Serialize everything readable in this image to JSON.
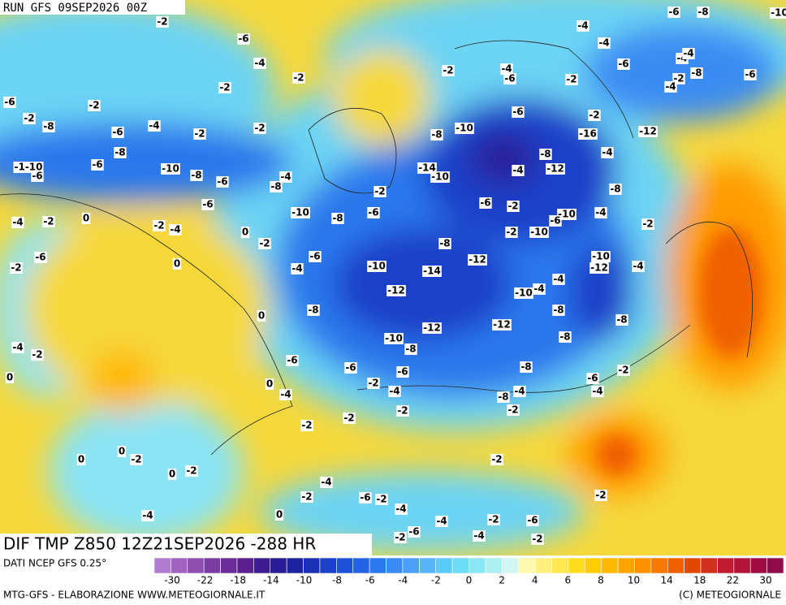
{
  "run": "RUN GFS 09SEP2026 00Z",
  "title": "DIF TMP Z850 12Z21SEP2026 -288 HR",
  "source": "DATI NCEP GFS 0.25°",
  "credit_left": "MTG-GFS - ELABORAZIONE WWW.METEOGIORNALE.IT",
  "credit_right": "(C) METEOGIORNALE",
  "colorbar": {
    "colors": [
      "#b07cd0",
      "#a064c0",
      "#8e50b0",
      "#7a3ca0",
      "#6a2c96",
      "#5a2090",
      "#3c1c90",
      "#2a1c96",
      "#1c22a0",
      "#1a30b4",
      "#1c40c8",
      "#1e50d8",
      "#2464e4",
      "#2c78ec",
      "#3a8cf2",
      "#4aa0f6",
      "#58b4f8",
      "#5ccaf8",
      "#6cdcf6",
      "#8ae8f4",
      "#aef0f2",
      "#d4f6f0",
      "#fff8b0",
      "#fff080",
      "#ffe850",
      "#ffdc20",
      "#ffcc00",
      "#ffb800",
      "#ffa400",
      "#ff9000",
      "#f87800",
      "#f06000",
      "#e04800",
      "#d03020",
      "#c01c30",
      "#b01438",
      "#a00c40",
      "#900c48"
    ],
    "labels": [
      "-30",
      "-22",
      "-18",
      "-14",
      "-10",
      "-8",
      "-6",
      "-4",
      "-2",
      "0",
      "2",
      "4",
      "6",
      "8",
      "10",
      "14",
      "18",
      "22",
      "30"
    ]
  },
  "contour_labels": [
    "-2",
    "-6",
    "-4",
    "-2",
    "-2",
    "-2",
    "-6",
    "-2",
    "-8",
    "-6",
    "-4",
    "-2",
    "-2",
    "-8",
    "-6",
    "-1-10",
    "-6",
    "-10",
    "-8",
    "-6",
    "-4",
    "-8",
    "-6",
    "-10",
    "-8",
    "-6",
    "-2",
    "-4",
    "-2",
    "0",
    "-2",
    "-4",
    "0",
    "-2",
    "-6",
    "-2",
    "-6",
    "-4",
    "0",
    "-10",
    "-8",
    "-14",
    "-12",
    "-12",
    "-8",
    "0",
    "-10",
    "-8",
    "-12",
    "-12",
    "-10",
    "-4",
    "-4",
    "-8",
    "-8",
    "-8",
    "-10",
    "-12",
    "-4",
    "-4",
    "-2",
    "0",
    "-6",
    "-6",
    "-2",
    "-6",
    "-4",
    "0",
    "-4",
    "-8",
    "-8",
    "-4",
    "-2",
    "-6",
    "-2",
    "-4",
    "-2",
    "-2",
    "-2",
    "0",
    "-2",
    "0",
    "0",
    "-2",
    "-2",
    "-4",
    "-2",
    "-6",
    "-2",
    "-4",
    "-4",
    "0",
    "-4",
    "-2",
    "-6",
    "-2",
    "-2",
    "-6",
    "-4",
    "-2",
    "-2",
    "-4",
    "-6",
    "-2",
    "-4",
    "-4",
    "-6",
    "-6",
    "-8",
    "-4",
    "-4",
    "-2",
    "-8",
    "-4",
    "-6",
    "-10",
    "-6",
    "-2",
    "-8",
    "-10",
    "-16",
    "-12",
    "-4",
    "-8",
    "-4",
    "-12",
    "-14",
    "-10",
    "-8",
    "-6",
    "-2",
    "-10",
    "-6",
    "-4",
    "-2",
    "-2",
    "-10"
  ]
}
